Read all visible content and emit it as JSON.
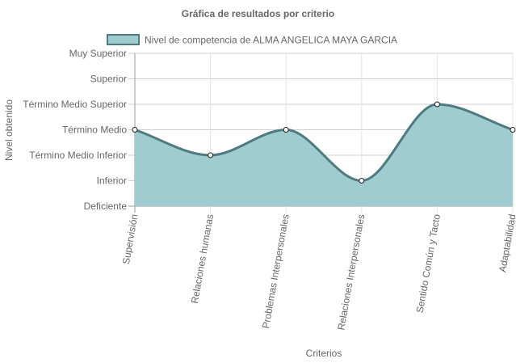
{
  "chart_data": {
    "type": "area",
    "title": "Gráfica de resultados por criterio",
    "xlabel": "Criterios",
    "ylabel": "Nivel obtenido",
    "categories": [
      "Supervisión",
      "Relaciones humanas",
      "Problemas Interpersonales",
      "Relaciones Interpersonales",
      "Sentido Común y Tacto",
      "Adaptabilidad"
    ],
    "y_levels": [
      "Deficiente",
      "Inferior",
      "Término Medio Inferior",
      "Término Medio",
      "Término Medio Superior",
      "Superior",
      "Muy Superior"
    ],
    "ylim": [
      0,
      6
    ],
    "series": [
      {
        "name": "Nivel de competencia de ALMA ANGELICA MAYA GARCIA",
        "values": [
          3,
          2,
          3,
          1,
          4,
          3
        ],
        "value_labels": [
          "Término Medio",
          "Término Medio Inferior",
          "Término Medio",
          "Inferior",
          "Término Medio Superior",
          "Término Medio"
        ]
      }
    ],
    "fill_color": "#a0cccf",
    "line_color": "#4f7a80",
    "grid": true,
    "legend_position": "top"
  }
}
